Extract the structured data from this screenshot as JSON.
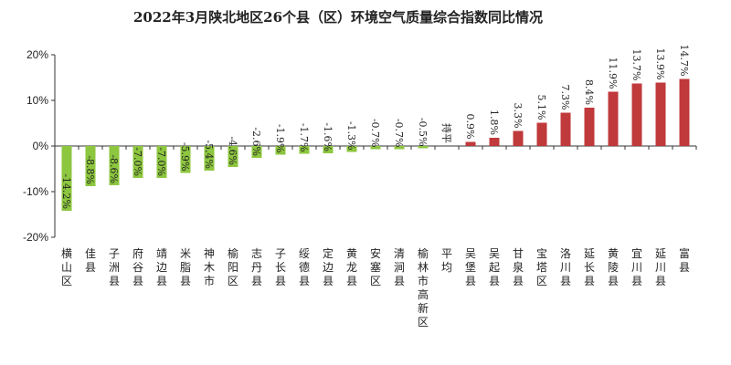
{
  "chart_data": {
    "type": "bar",
    "title": "2022年3月陕北地区26个县（区）环境空气质量综合指数同比情况",
    "xlabel": "",
    "ylabel": "",
    "ylim": [
      -20,
      20
    ],
    "yticks": [
      "20%",
      "10%",
      "0%",
      "-10%",
      "-20%"
    ],
    "ytick_values": [
      20,
      10,
      0,
      -10,
      -20
    ],
    "grid": false,
    "legend": "none",
    "categories": [
      "横山区",
      "佳县",
      "子洲县",
      "府谷县",
      "靖边县",
      "米脂县",
      "神木市",
      "榆阳区",
      "志丹县",
      "子长县",
      "绥德县",
      "定边县",
      "黄龙县",
      "安塞区",
      "清涧县",
      "榆林市高新区",
      "平均",
      "吴堡县",
      "吴起县",
      "甘泉县",
      "宝塔区",
      "洛川县",
      "延长县",
      "黄陵县",
      "宜川县",
      "延川县",
      "富县"
    ],
    "values": [
      -14.2,
      -8.8,
      -8.6,
      -7.0,
      -7.0,
      -5.9,
      -5.4,
      -4.6,
      -2.6,
      -1.9,
      -1.7,
      -1.6,
      -1.3,
      -0.7,
      -0.7,
      -0.5,
      0,
      0.9,
      1.8,
      3.3,
      5.1,
      7.3,
      8.4,
      11.9,
      13.7,
      13.9,
      14.7
    ],
    "labels": [
      "-14.2%",
      "-8.8%",
      "-8.6%",
      "-7.0%",
      "-7.0%",
      "-5.9%",
      "-5.4%",
      "-4.6%",
      "-2.6%",
      "-1.9%",
      "-1.7%",
      "-1.6%",
      "-1.3%",
      "-0.7%",
      "-0.7%",
      "-0.5%",
      "持平",
      "0.9%",
      "1.8%",
      "3.3%",
      "5.1%",
      "7.3%",
      "8.4%",
      "11.9%",
      "13.7%",
      "13.9%",
      "14.7%"
    ],
    "colors": {
      "negative": "#8dc63f",
      "positive": "#c0393b",
      "axis": "#333333"
    }
  }
}
